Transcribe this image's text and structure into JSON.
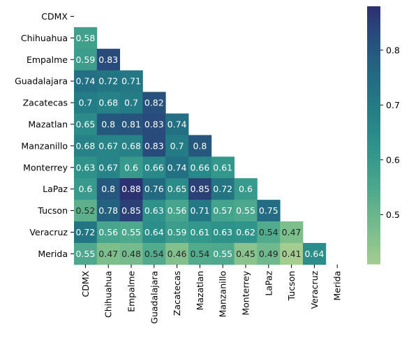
{
  "chart_data": {
    "type": "heatmap",
    "title": "",
    "xlabel": "",
    "ylabel": "",
    "labels": [
      "CDMX",
      "Chihuahua",
      "Empalme",
      "Guadalajara",
      "Zacatecas",
      "Mazatlan",
      "Manzanillo",
      "Monterrey",
      "LaPaz",
      "Tucson",
      "Veracruz",
      "Merida"
    ],
    "matrix": [
      [],
      [
        0.58
      ],
      [
        0.59,
        0.83
      ],
      [
        0.74,
        0.72,
        0.71
      ],
      [
        0.7,
        0.68,
        0.7,
        0.82
      ],
      [
        0.65,
        0.8,
        0.81,
        0.83,
        0.74
      ],
      [
        0.68,
        0.67,
        0.68,
        0.83,
        0.7,
        0.8
      ],
      [
        0.63,
        0.67,
        0.6,
        0.66,
        0.74,
        0.66,
        0.61
      ],
      [
        0.6,
        0.8,
        0.88,
        0.76,
        0.65,
        0.85,
        0.72,
        0.6
      ],
      [
        0.52,
        0.78,
        0.85,
        0.63,
        0.56,
        0.71,
        0.57,
        0.55,
        0.75
      ],
      [
        0.72,
        0.56,
        0.55,
        0.64,
        0.59,
        0.61,
        0.63,
        0.62,
        0.54,
        0.47
      ],
      [
        0.55,
        0.47,
        0.48,
        0.54,
        0.46,
        0.54,
        0.55,
        0.45,
        0.49,
        0.41,
        0.64
      ]
    ],
    "mask": "upper-triangle-and-diagonal",
    "colormap": "crest",
    "vmin": 0.41,
    "vmax": 0.88,
    "colorbar_ticks": [
      "0.5",
      "0.6",
      "0.7",
      "0.8"
    ],
    "colorbar_tick_values": [
      0.5,
      0.6,
      0.7,
      0.8
    ],
    "colors": {
      "crest_low": "#a5cd90",
      "crest_mid": "#2a8b8b",
      "crest_high": "#2c3172",
      "text_light": "#ffffff",
      "text_dark": "#262626"
    }
  }
}
